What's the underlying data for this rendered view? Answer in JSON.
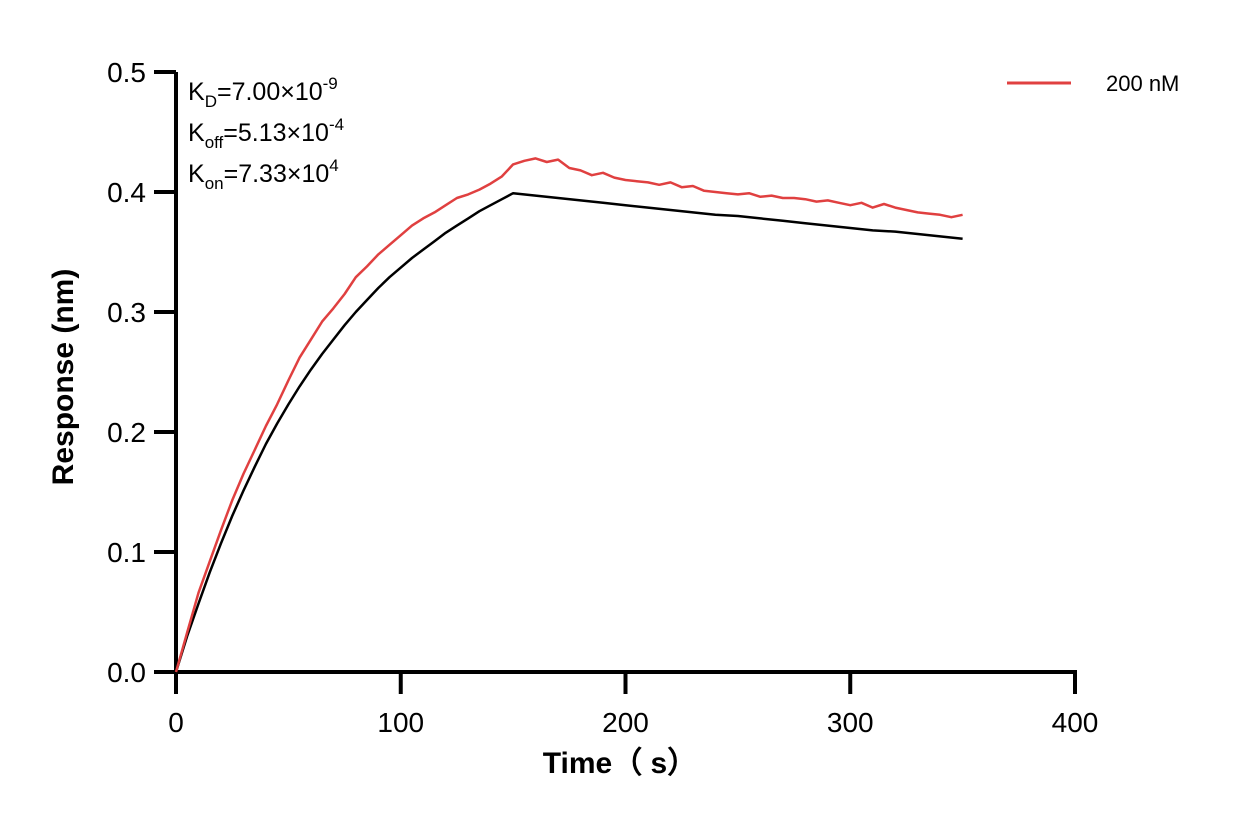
{
  "chart_data": {
    "type": "line",
    "xlabel": "Time（ s）",
    "ylabel": "Response (nm)",
    "xlim": [
      0,
      400
    ],
    "ylim": [
      0,
      0.5
    ],
    "x_ticks": [
      "0",
      "100",
      "200",
      "300",
      "400"
    ],
    "y_ticks": [
      "0.0",
      "0.1",
      "0.2",
      "0.3",
      "0.4",
      "0.5"
    ],
    "grid": false,
    "legend_position": "top-right",
    "colors": {
      "measured": "#e04040",
      "fit": "#000000",
      "axis": "#000000"
    },
    "annotations": {
      "kd": {
        "base": "K",
        "sub": "D",
        "value": "=7.00×10",
        "exp": "-9"
      },
      "koff": {
        "base": "K",
        "sub": "off",
        "value": "=5.13×10",
        "exp": "-4"
      },
      "kon": {
        "base": "K",
        "sub": "on",
        "value": "=7.33×10",
        "exp": "4"
      }
    },
    "series": [
      {
        "name": "200 nM",
        "role": "measured",
        "x": [
          0,
          5,
          10,
          15,
          20,
          25,
          30,
          35,
          40,
          45,
          50,
          55,
          60,
          65,
          70,
          75,
          80,
          85,
          90,
          95,
          100,
          105,
          110,
          115,
          120,
          125,
          130,
          135,
          140,
          145,
          150,
          155,
          160,
          165,
          170,
          175,
          180,
          185,
          190,
          195,
          200,
          205,
          210,
          215,
          220,
          225,
          230,
          235,
          240,
          245,
          250,
          255,
          260,
          265,
          270,
          275,
          280,
          285,
          290,
          295,
          300,
          305,
          310,
          315,
          320,
          325,
          330,
          335,
          340,
          345,
          350
        ],
        "y": [
          0.0,
          0.033,
          0.066,
          0.092,
          0.118,
          0.143,
          0.165,
          0.185,
          0.205,
          0.223,
          0.243,
          0.262,
          0.277,
          0.292,
          0.303,
          0.315,
          0.329,
          0.338,
          0.348,
          0.356,
          0.364,
          0.372,
          0.378,
          0.383,
          0.389,
          0.395,
          0.398,
          0.402,
          0.407,
          0.413,
          0.423,
          0.426,
          0.428,
          0.425,
          0.427,
          0.42,
          0.418,
          0.414,
          0.416,
          0.412,
          0.41,
          0.409,
          0.408,
          0.406,
          0.408,
          0.404,
          0.405,
          0.401,
          0.4,
          0.399,
          0.398,
          0.399,
          0.396,
          0.397,
          0.395,
          0.395,
          0.394,
          0.392,
          0.393,
          0.391,
          0.389,
          0.391,
          0.387,
          0.39,
          0.387,
          0.385,
          0.383,
          0.382,
          0.381,
          0.379,
          0.381
        ]
      },
      {
        "role": "fit",
        "x": [
          0,
          5,
          10,
          15,
          20,
          25,
          30,
          35,
          40,
          45,
          50,
          55,
          60,
          65,
          70,
          75,
          80,
          85,
          90,
          95,
          100,
          105,
          110,
          115,
          120,
          125,
          130,
          135,
          140,
          145,
          150,
          160,
          170,
          180,
          190,
          200,
          210,
          220,
          230,
          240,
          250,
          260,
          270,
          280,
          290,
          300,
          310,
          320,
          330,
          340,
          350
        ],
        "y": [
          0.0,
          0.03,
          0.057,
          0.083,
          0.107,
          0.13,
          0.151,
          0.171,
          0.19,
          0.207,
          0.223,
          0.238,
          0.252,
          0.265,
          0.277,
          0.289,
          0.3,
          0.31,
          0.32,
          0.329,
          0.337,
          0.345,
          0.352,
          0.359,
          0.366,
          0.372,
          0.378,
          0.384,
          0.389,
          0.394,
          0.399,
          0.397,
          0.395,
          0.393,
          0.391,
          0.389,
          0.387,
          0.385,
          0.383,
          0.381,
          0.38,
          0.378,
          0.376,
          0.374,
          0.372,
          0.37,
          0.368,
          0.367,
          0.365,
          0.363,
          0.361
        ]
      }
    ]
  }
}
